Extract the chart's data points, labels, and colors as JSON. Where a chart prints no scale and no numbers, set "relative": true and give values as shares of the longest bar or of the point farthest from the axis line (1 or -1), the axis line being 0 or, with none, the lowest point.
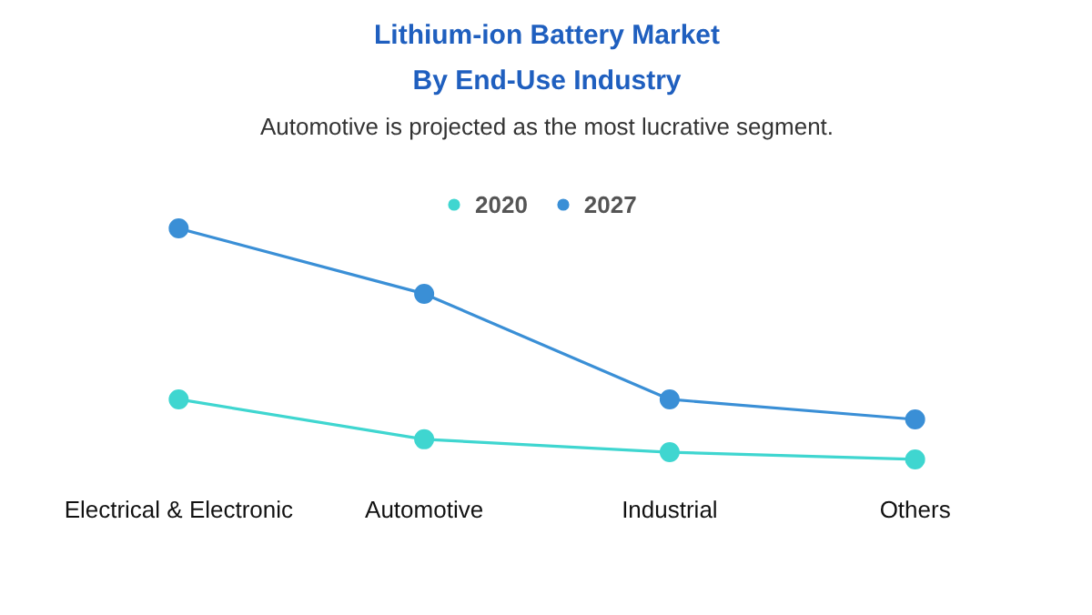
{
  "chart_data": {
    "type": "line",
    "title": "Lithium-ion Battery Market\nBy End-Use Industry",
    "subtitle": "Automotive is projected as the most lucrative segment.",
    "categories": [
      "Electrical & Electronic",
      "Automotive",
      "Industrial",
      "Others"
    ],
    "relative": true,
    "legend": "top",
    "marker": "circle",
    "grid": false,
    "series": [
      {
        "name": "2020",
        "color": "#3fd6d0",
        "values": [
          0.26,
          0.087,
          0.031,
          0
        ]
      },
      {
        "name": "2027",
        "color": "#3a8fd6",
        "values": [
          1,
          0.717,
          0.26,
          0.173
        ]
      }
    ]
  }
}
